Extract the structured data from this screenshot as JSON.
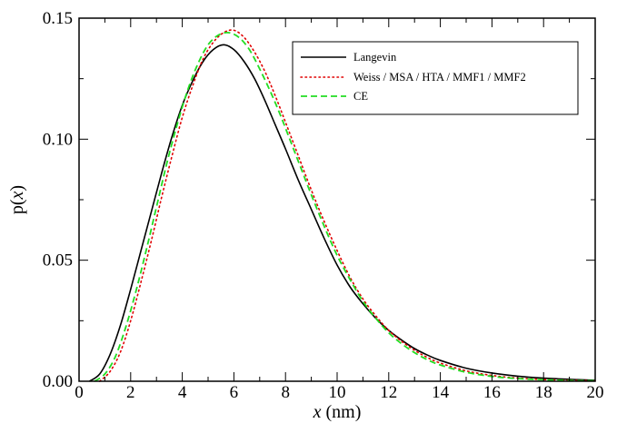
{
  "chart_data": {
    "type": "line",
    "xlabel": {
      "var": "x",
      "unit": " (nm)"
    },
    "ylabel": {
      "pre": "p(",
      "var": "x",
      "post": ")"
    },
    "xlim": [
      0,
      20
    ],
    "ylim": [
      0,
      0.15
    ],
    "xticks": [
      0,
      2,
      4,
      6,
      8,
      10,
      12,
      14,
      16,
      18,
      20
    ],
    "yticks": [
      0.0,
      0.05,
      0.1,
      0.15
    ],
    "ytick_labels": [
      "0.00",
      "0.05",
      "0.10",
      "0.15"
    ],
    "grid": false,
    "legend_position": "top-right",
    "series": [
      {
        "name": "Langevin",
        "color": "#000000",
        "style": "solid",
        "x": [
          0.4,
          0.8,
          1.2,
          1.6,
          2.0,
          2.4,
          2.8,
          3.2,
          3.6,
          4.0,
          4.4,
          4.8,
          5.2,
          5.6,
          6.0,
          6.4,
          6.8,
          7.2,
          7.6,
          8.0,
          8.5,
          9.0,
          9.5,
          10.0,
          10.5,
          11.0,
          11.5,
          12.0,
          12.5,
          13.0,
          13.5,
          14.0,
          15.0,
          16.0,
          17.0,
          18.0,
          19.0,
          20.0
        ],
        "y": [
          0.0,
          0.003,
          0.011,
          0.023,
          0.038,
          0.054,
          0.07,
          0.086,
          0.101,
          0.114,
          0.124,
          0.132,
          0.137,
          0.139,
          0.137,
          0.132,
          0.125,
          0.116,
          0.106,
          0.096,
          0.083,
          0.071,
          0.059,
          0.048,
          0.039,
          0.032,
          0.026,
          0.021,
          0.017,
          0.0135,
          0.0108,
          0.0086,
          0.0054,
          0.0034,
          0.0021,
          0.0013,
          0.0008,
          0.0004
        ]
      },
      {
        "name": "Weiss / MSA / HTA / MMF1 / MMF2",
        "color": "#e00000",
        "style": "dotted",
        "x": [
          0.8,
          1.2,
          1.6,
          2.0,
          2.4,
          2.8,
          3.2,
          3.6,
          4.0,
          4.4,
          4.8,
          5.2,
          5.6,
          6.0,
          6.4,
          6.8,
          7.2,
          7.6,
          8.0,
          8.5,
          9.0,
          9.5,
          10.0,
          10.5,
          11.0,
          11.5,
          12.0,
          12.5,
          13.0,
          13.5,
          14.0,
          15.0,
          16.0,
          17.0,
          18.0,
          19.0,
          20.0
        ],
        "y": [
          0.0,
          0.004,
          0.012,
          0.025,
          0.041,
          0.058,
          0.076,
          0.093,
          0.109,
          0.122,
          0.133,
          0.14,
          0.144,
          0.145,
          0.142,
          0.136,
          0.128,
          0.118,
          0.107,
          0.093,
          0.079,
          0.066,
          0.054,
          0.043,
          0.034,
          0.027,
          0.021,
          0.0165,
          0.0128,
          0.0098,
          0.0075,
          0.0043,
          0.0024,
          0.0013,
          0.0007,
          0.0004,
          0.0002
        ]
      },
      {
        "name": "CE",
        "color": "#22dd22",
        "style": "dashed",
        "x": [
          0.6,
          1.0,
          1.4,
          1.8,
          2.2,
          2.6,
          3.0,
          3.4,
          3.8,
          4.2,
          4.6,
          5.0,
          5.4,
          5.8,
          6.2,
          6.6,
          7.0,
          7.4,
          7.8,
          8.2,
          8.6,
          9.0,
          9.5,
          10.0,
          10.5,
          11.0,
          11.5,
          12.0,
          12.5,
          13.0,
          13.5,
          14.0,
          15.0,
          16.0,
          17.0,
          18.0,
          19.0,
          20.0
        ],
        "y": [
          0.0,
          0.003,
          0.01,
          0.022,
          0.037,
          0.054,
          0.072,
          0.09,
          0.106,
          0.12,
          0.131,
          0.139,
          0.143,
          0.144,
          0.142,
          0.137,
          0.129,
          0.12,
          0.11,
          0.099,
          0.088,
          0.077,
          0.064,
          0.052,
          0.042,
          0.033,
          0.026,
          0.02,
          0.0155,
          0.0118,
          0.0089,
          0.0067,
          0.0037,
          0.002,
          0.0011,
          0.0006,
          0.0003,
          0.0002
        ]
      }
    ]
  }
}
